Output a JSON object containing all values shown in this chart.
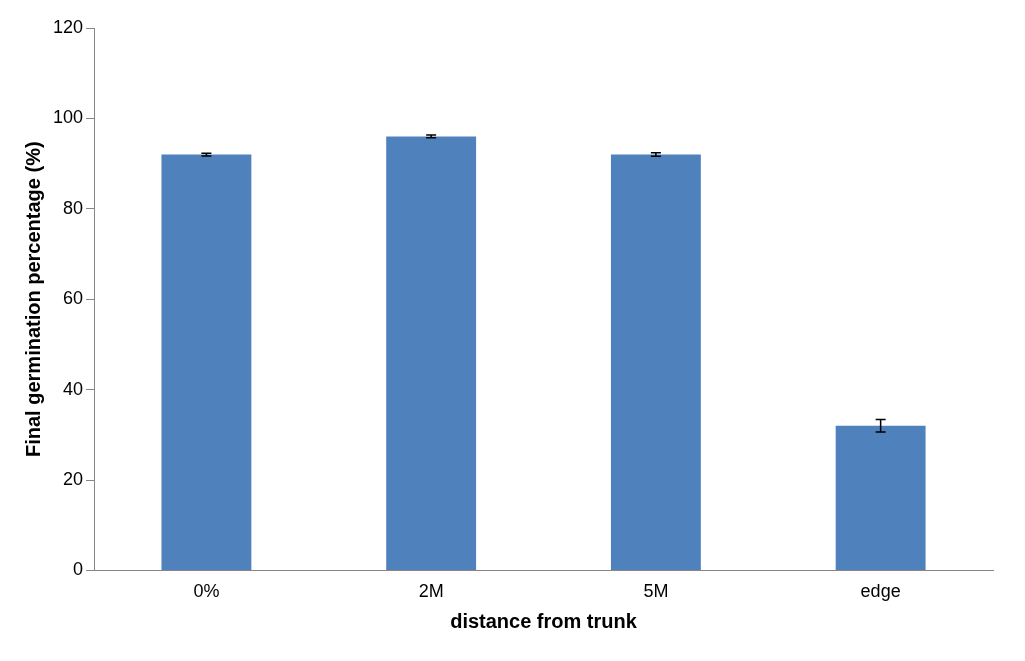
{
  "chart_data": {
    "type": "bar",
    "xlabel": "distance from trunk",
    "ylabel": "Final germination percentage (%)",
    "categories": [
      "0%",
      "2M",
      "5M",
      "edge"
    ],
    "values": [
      92,
      96,
      92,
      32
    ],
    "errors": [
      0.3,
      0.3,
      0.4,
      1.4
    ],
    "color": "#4f81bd",
    "ylim": [
      0,
      120
    ],
    "yticks": [
      0,
      20,
      40,
      60,
      80,
      100,
      120
    ],
    "grid": false,
    "legend": false
  }
}
